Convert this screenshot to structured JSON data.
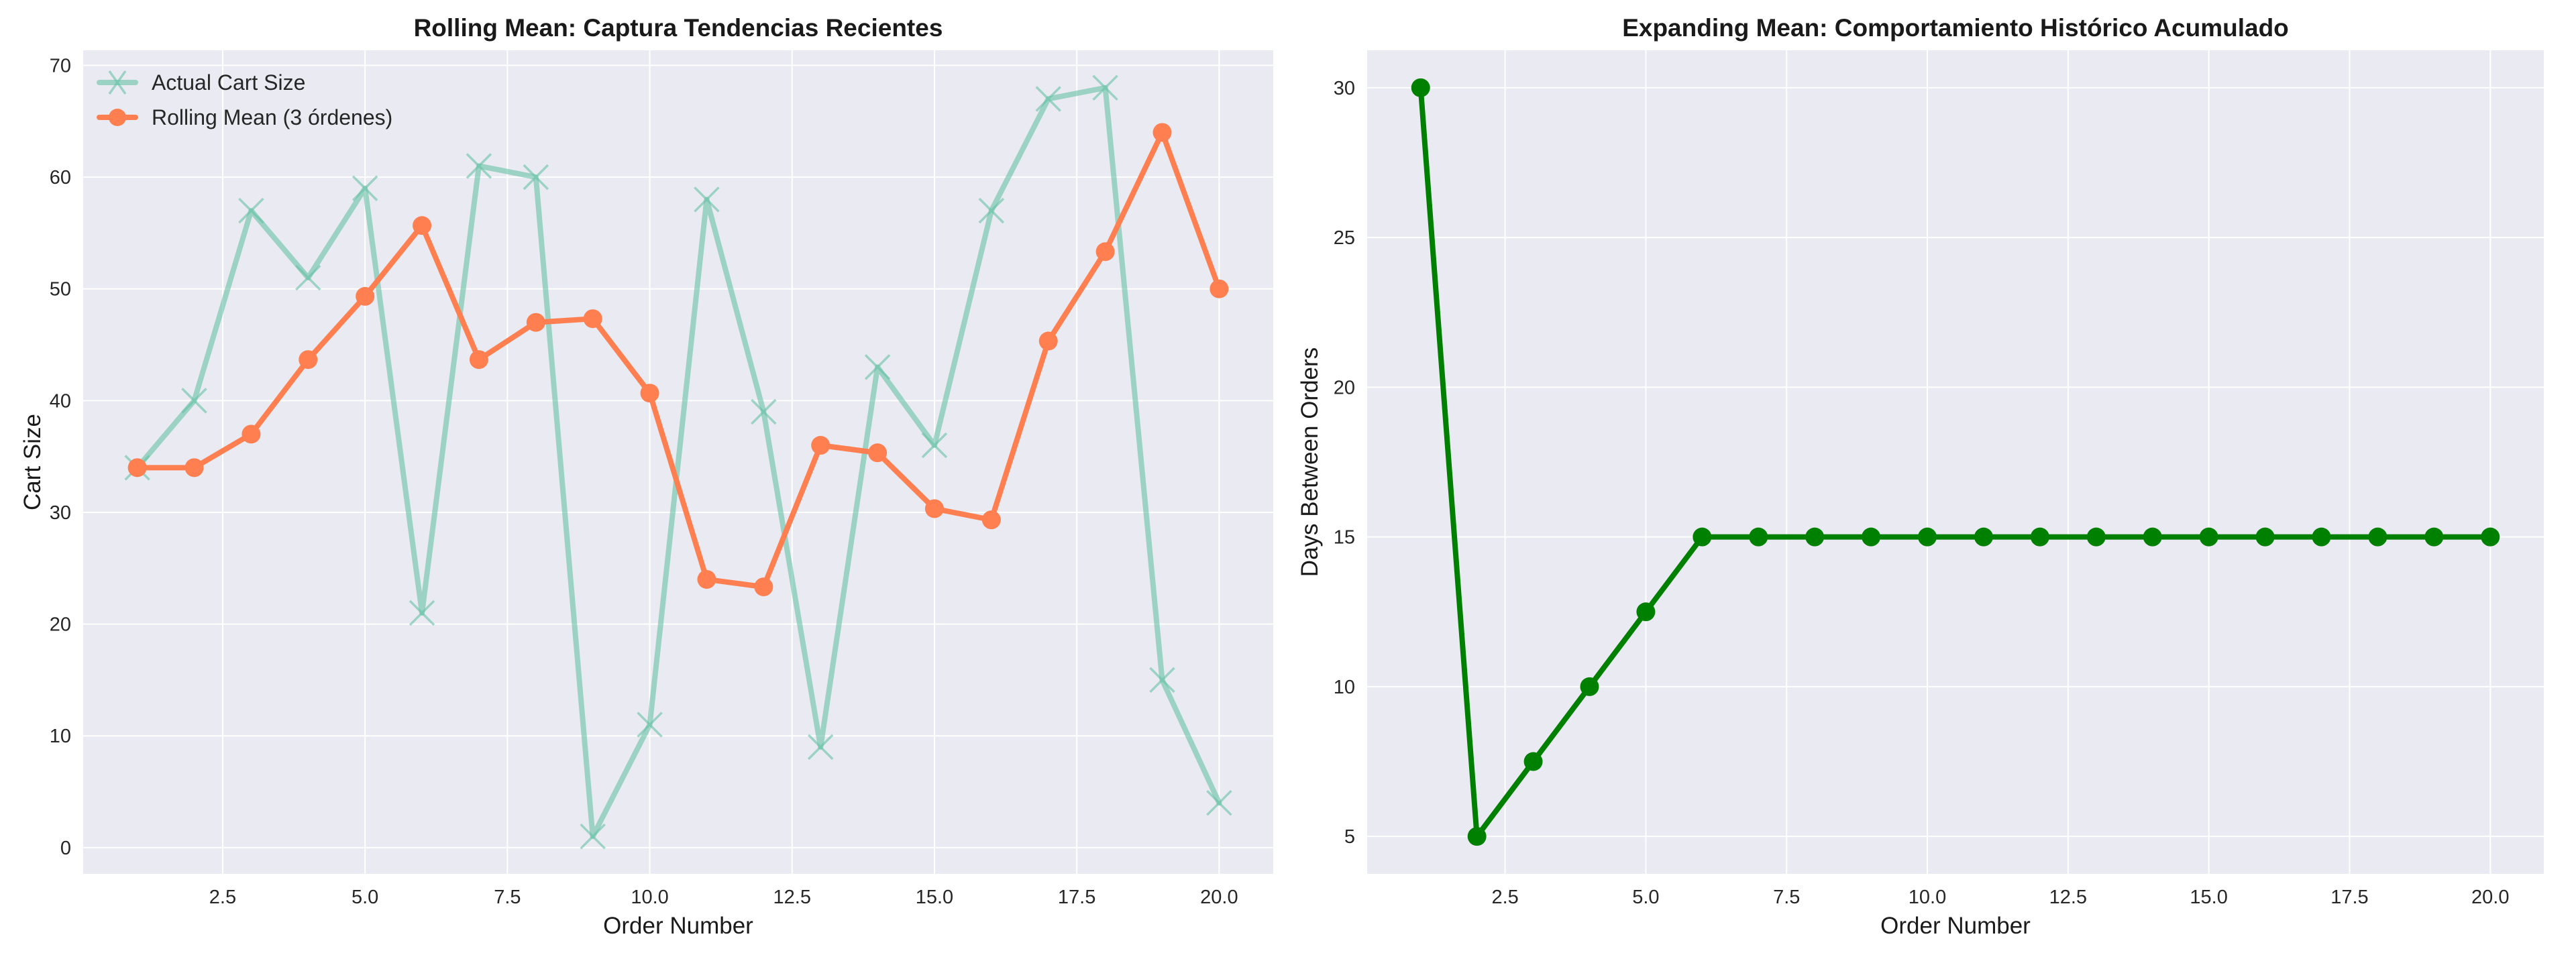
{
  "chart_data": [
    {
      "type": "line",
      "title": "Rolling Mean: Captura Tendencias Recientes",
      "xlabel": "Order Number",
      "ylabel": "Cart Size",
      "xlim": [
        0.05,
        20.95
      ],
      "ylim": [
        -2.35,
        71.35
      ],
      "xticks": [
        2.5,
        5.0,
        7.5,
        10.0,
        12.5,
        15.0,
        17.5,
        20.0
      ],
      "yticks": [
        0,
        10,
        20,
        30,
        40,
        50,
        60,
        70
      ],
      "grid": true,
      "legend_position": "top-left",
      "x": [
        1,
        2,
        3,
        4,
        5,
        6,
        7,
        8,
        9,
        10,
        11,
        12,
        13,
        14,
        15,
        16,
        17,
        18,
        19,
        20
      ],
      "series": [
        {
          "name": "Actual Cart Size",
          "color": "#66c2a5",
          "marker": "x",
          "values": [
            34,
            40,
            57,
            51,
            59,
            21,
            61,
            60,
            1,
            11,
            58,
            39,
            9,
            43,
            36,
            57,
            67,
            68,
            15,
            4
          ]
        },
        {
          "name": "Rolling Mean (3 órdenes)",
          "color": "#ff7f50",
          "marker": "o",
          "values": [
            34,
            34,
            37,
            43.67,
            49.33,
            55.67,
            43.67,
            47,
            47.33,
            40.67,
            24,
            23.33,
            36,
            35.33,
            30.33,
            29.33,
            45.33,
            53.33,
            64,
            50
          ]
        }
      ]
    },
    {
      "type": "line",
      "title": "Expanding Mean: Comportamiento Histórico Acumulado",
      "xlabel": "Order Number",
      "ylabel": "Days Between Orders",
      "xlim": [
        0.05,
        20.95
      ],
      "ylim": [
        3.75,
        31.25
      ],
      "xticks": [
        2.5,
        5.0,
        7.5,
        10.0,
        12.5,
        15.0,
        17.5,
        20.0
      ],
      "yticks": [
        5,
        10,
        15,
        20,
        25,
        30
      ],
      "grid": true,
      "x": [
        1,
        2,
        3,
        4,
        5,
        6,
        7,
        8,
        9,
        10,
        11,
        12,
        13,
        14,
        15,
        16,
        17,
        18,
        19,
        20
      ],
      "series": [
        {
          "color": "#008000",
          "marker": "o",
          "values": [
            30,
            5,
            7.5,
            10,
            12.5,
            15,
            15,
            15,
            15,
            15,
            15,
            15,
            15,
            15,
            15,
            15,
            15,
            15,
            15,
            15
          ]
        }
      ]
    }
  ]
}
